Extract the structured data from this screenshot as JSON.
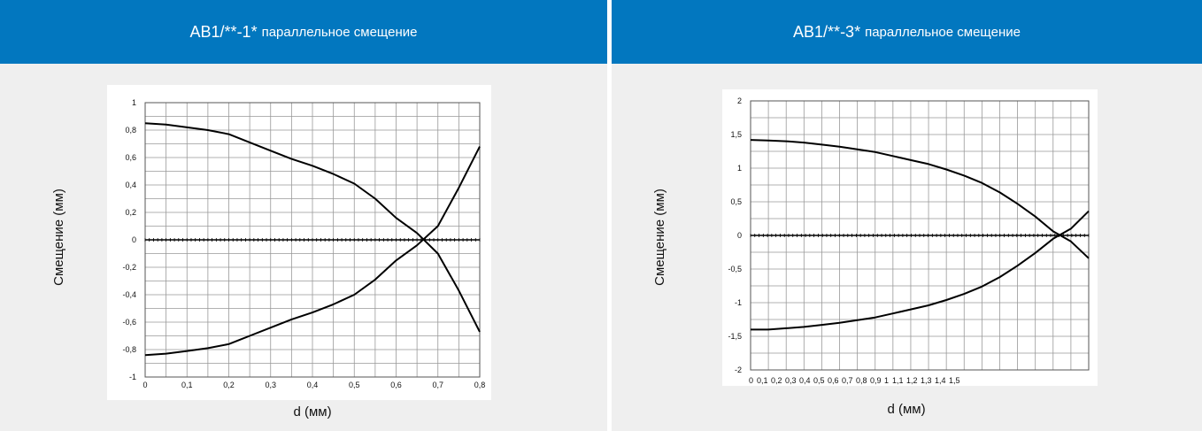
{
  "colors": {
    "header_bg": "#0277bf",
    "header_text": "#ffffff",
    "panel_bg": "#efefef",
    "plot_bg": "#ffffff",
    "grid": "#999999",
    "curve": "#000000"
  },
  "panels": [
    {
      "title_main": "AB1/**-1*",
      "title_sub": "параллельное смещение",
      "ylabel": "Смещение (мм)",
      "xlabel": "d (мм)"
    },
    {
      "title_main": "AB1/**-3*",
      "title_sub": "параллельное смещение",
      "ylabel": "Смещение (мм)",
      "xlabel": "d (мм)"
    }
  ],
  "chart_data": [
    {
      "type": "line",
      "title": "AB1/**-1* параллельное смещение",
      "xlabel": "d (мм)",
      "ylabel": "Смещение (мм)",
      "xlim": [
        0,
        0.8
      ],
      "ylim": [
        -1,
        1
      ],
      "grid": true,
      "x_ticks": [
        "0",
        "0,1",
        "0,2",
        "0,3",
        "0,4",
        "0,5",
        "0,6",
        "0,7",
        "0,8"
      ],
      "y_ticks": [
        "1",
        "0,8",
        "0,6",
        "0,4",
        "0,2",
        "0",
        "-0,2",
        "-0,4",
        "-0,6",
        "-0,8",
        "-1"
      ],
      "series": [
        {
          "x": [
            0,
            0.05,
            0.1,
            0.15,
            0.2,
            0.25,
            0.3,
            0.35,
            0.4,
            0.45,
            0.5,
            0.55,
            0.6,
            0.65,
            0.7,
            0.75,
            0.8
          ],
          "values": [
            0.85,
            0.84,
            0.82,
            0.8,
            0.77,
            0.71,
            0.65,
            0.59,
            0.54,
            0.48,
            0.41,
            0.3,
            0.16,
            0.05,
            -0.1,
            -0.37,
            -0.67
          ]
        },
        {
          "x": [
            0,
            0.05,
            0.1,
            0.15,
            0.2,
            0.25,
            0.3,
            0.35,
            0.4,
            0.45,
            0.5,
            0.55,
            0.6,
            0.65,
            0.7,
            0.75,
            0.8
          ],
          "values": [
            -0.84,
            -0.83,
            -0.81,
            -0.79,
            -0.76,
            -0.7,
            -0.64,
            -0.58,
            -0.53,
            -0.47,
            -0.4,
            -0.29,
            -0.15,
            -0.04,
            0.1,
            0.38,
            0.68
          ]
        }
      ]
    },
    {
      "type": "line",
      "title": "AB1/**-3* параллельное смещение",
      "xlabel": "d (мм)",
      "ylabel": "Смещение (мм)",
      "xlim": [
        0,
        1.9
      ],
      "ylim": [
        -2,
        2
      ],
      "grid": true,
      "x_ticks": [
        "0",
        "0,1",
        "0,2",
        "0,3",
        "0,4",
        "0,5",
        "0,6",
        "0,7",
        "0,8",
        "0,9",
        "1",
        "1,1",
        "1,2",
        "1,3",
        "1,4",
        "1,5"
      ],
      "y_ticks": [
        "2",
        "1,5",
        "1",
        "0,5",
        "0",
        "-0,5",
        "-1",
        "-1,5",
        "-2"
      ],
      "series": [
        {
          "x": [
            0,
            0.1,
            0.2,
            0.3,
            0.4,
            0.5,
            0.6,
            0.7,
            0.8,
            0.9,
            1.0,
            1.1,
            1.2,
            1.3,
            1.4,
            1.5,
            1.6,
            1.7,
            1.8,
            1.9
          ],
          "values": [
            1.42,
            1.41,
            1.4,
            1.38,
            1.35,
            1.32,
            1.28,
            1.24,
            1.18,
            1.12,
            1.06,
            0.98,
            0.89,
            0.78,
            0.64,
            0.47,
            0.28,
            0.06,
            -0.09,
            -0.34
          ]
        },
        {
          "x": [
            0,
            0.1,
            0.2,
            0.3,
            0.4,
            0.5,
            0.6,
            0.7,
            0.8,
            0.9,
            1.0,
            1.1,
            1.2,
            1.3,
            1.4,
            1.5,
            1.6,
            1.7,
            1.8,
            1.9
          ],
          "values": [
            -1.4,
            -1.4,
            -1.38,
            -1.36,
            -1.33,
            -1.3,
            -1.26,
            -1.22,
            -1.16,
            -1.1,
            -1.04,
            -0.96,
            -0.87,
            -0.76,
            -0.62,
            -0.45,
            -0.26,
            -0.05,
            0.1,
            0.36
          ]
        }
      ]
    }
  ]
}
